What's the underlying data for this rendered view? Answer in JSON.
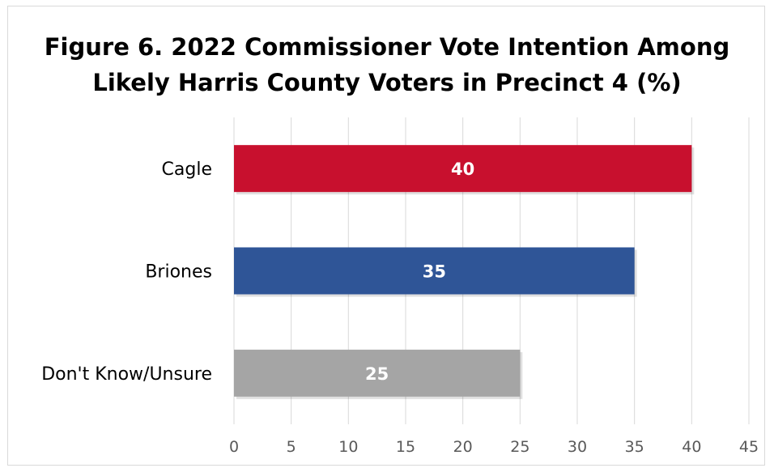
{
  "chart_data": {
    "type": "bar",
    "orientation": "horizontal",
    "title_lines": [
      "Figure 6. 2022 Commissioner Vote Intention Among",
      "Likely Harris County Voters in Precinct 4 (%)"
    ],
    "categories": [
      "Cagle",
      "Briones",
      "Don't Know/Unsure"
    ],
    "values": [
      40,
      35,
      25
    ],
    "data_labels": [
      "40",
      "35",
      "25"
    ],
    "colors": [
      "#c8102e",
      "#2f5597",
      "#a5a5a5"
    ],
    "xlim": [
      0,
      45
    ],
    "xticks": [
      "0",
      "5",
      "10",
      "15",
      "20",
      "25",
      "30",
      "35",
      "40",
      "45"
    ],
    "xtick_values": [
      0,
      5,
      10,
      15,
      20,
      25,
      30,
      35,
      40,
      45
    ],
    "gridlines": true,
    "legend": "none"
  }
}
